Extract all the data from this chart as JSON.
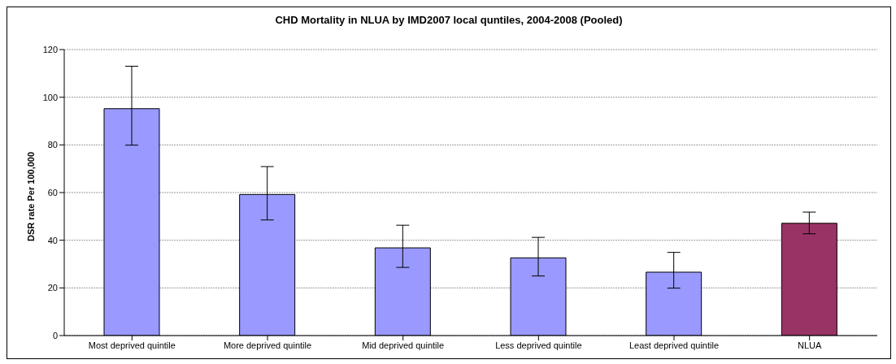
{
  "chart_data": {
    "type": "bar",
    "title": "CHD Mortality in NLUA by IMD2007 local quntiles, 2004-2008 (Pooled)",
    "ylabel": "DSR rate Per 100,000",
    "categories": [
      "Most deprived quintile",
      "More deprived quintile",
      "Mid deprived    quintile",
      "Less deprived quintile",
      "Least deprived quintile",
      "NLUA"
    ],
    "values": [
      95.2,
      59.2,
      36.8,
      32.6,
      26.6,
      47.1
    ],
    "colors": [
      "#9999ff",
      "#9999ff",
      "#9999ff",
      "#9999ff",
      "#9999ff",
      "#993366"
    ],
    "errors": [
      [
        79.9,
        113
      ],
      [
        48.5,
        70.9
      ],
      [
        28.6,
        46.3
      ],
      [
        25.0,
        41.2
      ],
      [
        19.9,
        34.9
      ],
      [
        42.7,
        51.8
      ]
    ],
    "ylim": [
      0,
      120
    ],
    "yticks": [
      0,
      20,
      40,
      60,
      80,
      100,
      120
    ],
    "grid": "y",
    "legend": false
  }
}
